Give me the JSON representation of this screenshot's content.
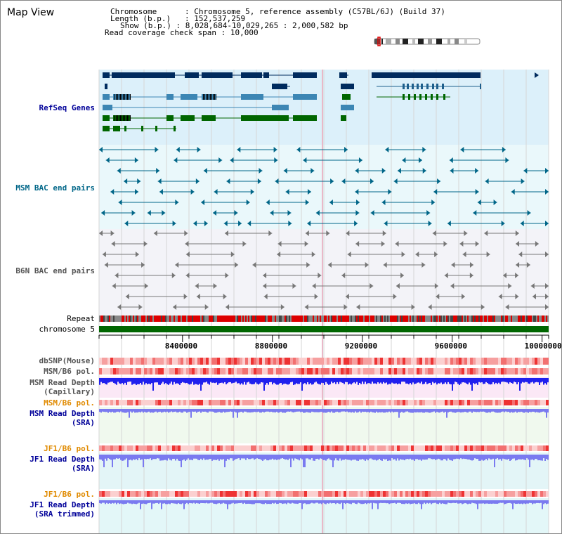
{
  "title": "Map View",
  "info": {
    "chromosome_key": "Chromosome",
    "chromosome_val": "Chromosome 5, reference assembly (C57BL/6J) (Build 37)",
    "length_key": "Length (b.p.)",
    "length_val": "152,537,259",
    "show_key": "Show (b.p.)",
    "show_val": "8,028,684-10,029,265 : 2,000,582 bp",
    "span_key": "Read coverage check span",
    "span_val": "10,000"
  },
  "tracks": {
    "refseq": "RefSeq Genes",
    "msm_bac": "MSM BAC end pairs",
    "b6n_bac": "B6N BAC end pairs",
    "repeat": "Repeat",
    "chromosome": "chromosome 5",
    "dbsnp": "dbSNP(Mouse)",
    "msm_b6_pol": "MSM/B6 pol.",
    "msm_depth_cap": "MSM Read Depth\n(Capillary)",
    "msm_b6_pol2": "MSM/B6 pol.",
    "msm_depth_sra": "MSM Read Depth\n(SRA)",
    "jf1_b6_pol": "JF1/B6 pol.",
    "jf1_depth_sra": "JF1 Read Depth\n(SRA)",
    "jf1_b6_pol2": "JF1/B6 pol.",
    "jf1_depth_trim": "JF1 Read Depth\n(SRA trimmed)"
  },
  "axis": {
    "ticks": [
      {
        "value": 8400000,
        "label": "8400000"
      },
      {
        "value": 8800000,
        "label": "8800000"
      },
      {
        "value": 9200000,
        "label": "9200000"
      },
      {
        "value": 9600000,
        "label": "9600000"
      },
      {
        "value": 10000000,
        "label": "10000000"
      }
    ],
    "start": 8028684,
    "end": 10029265
  },
  "colors": {
    "gene_dark": "#002b5e",
    "gene_mid": "#3c86b4",
    "gene_green": "#006600",
    "msm_bac": "#006688",
    "b6n_bac": "#777777",
    "repeat_red": "#dd0000",
    "chromosome": "#006600",
    "depth_blue": "#2020ee",
    "depth_light": "#7a7af0"
  }
}
